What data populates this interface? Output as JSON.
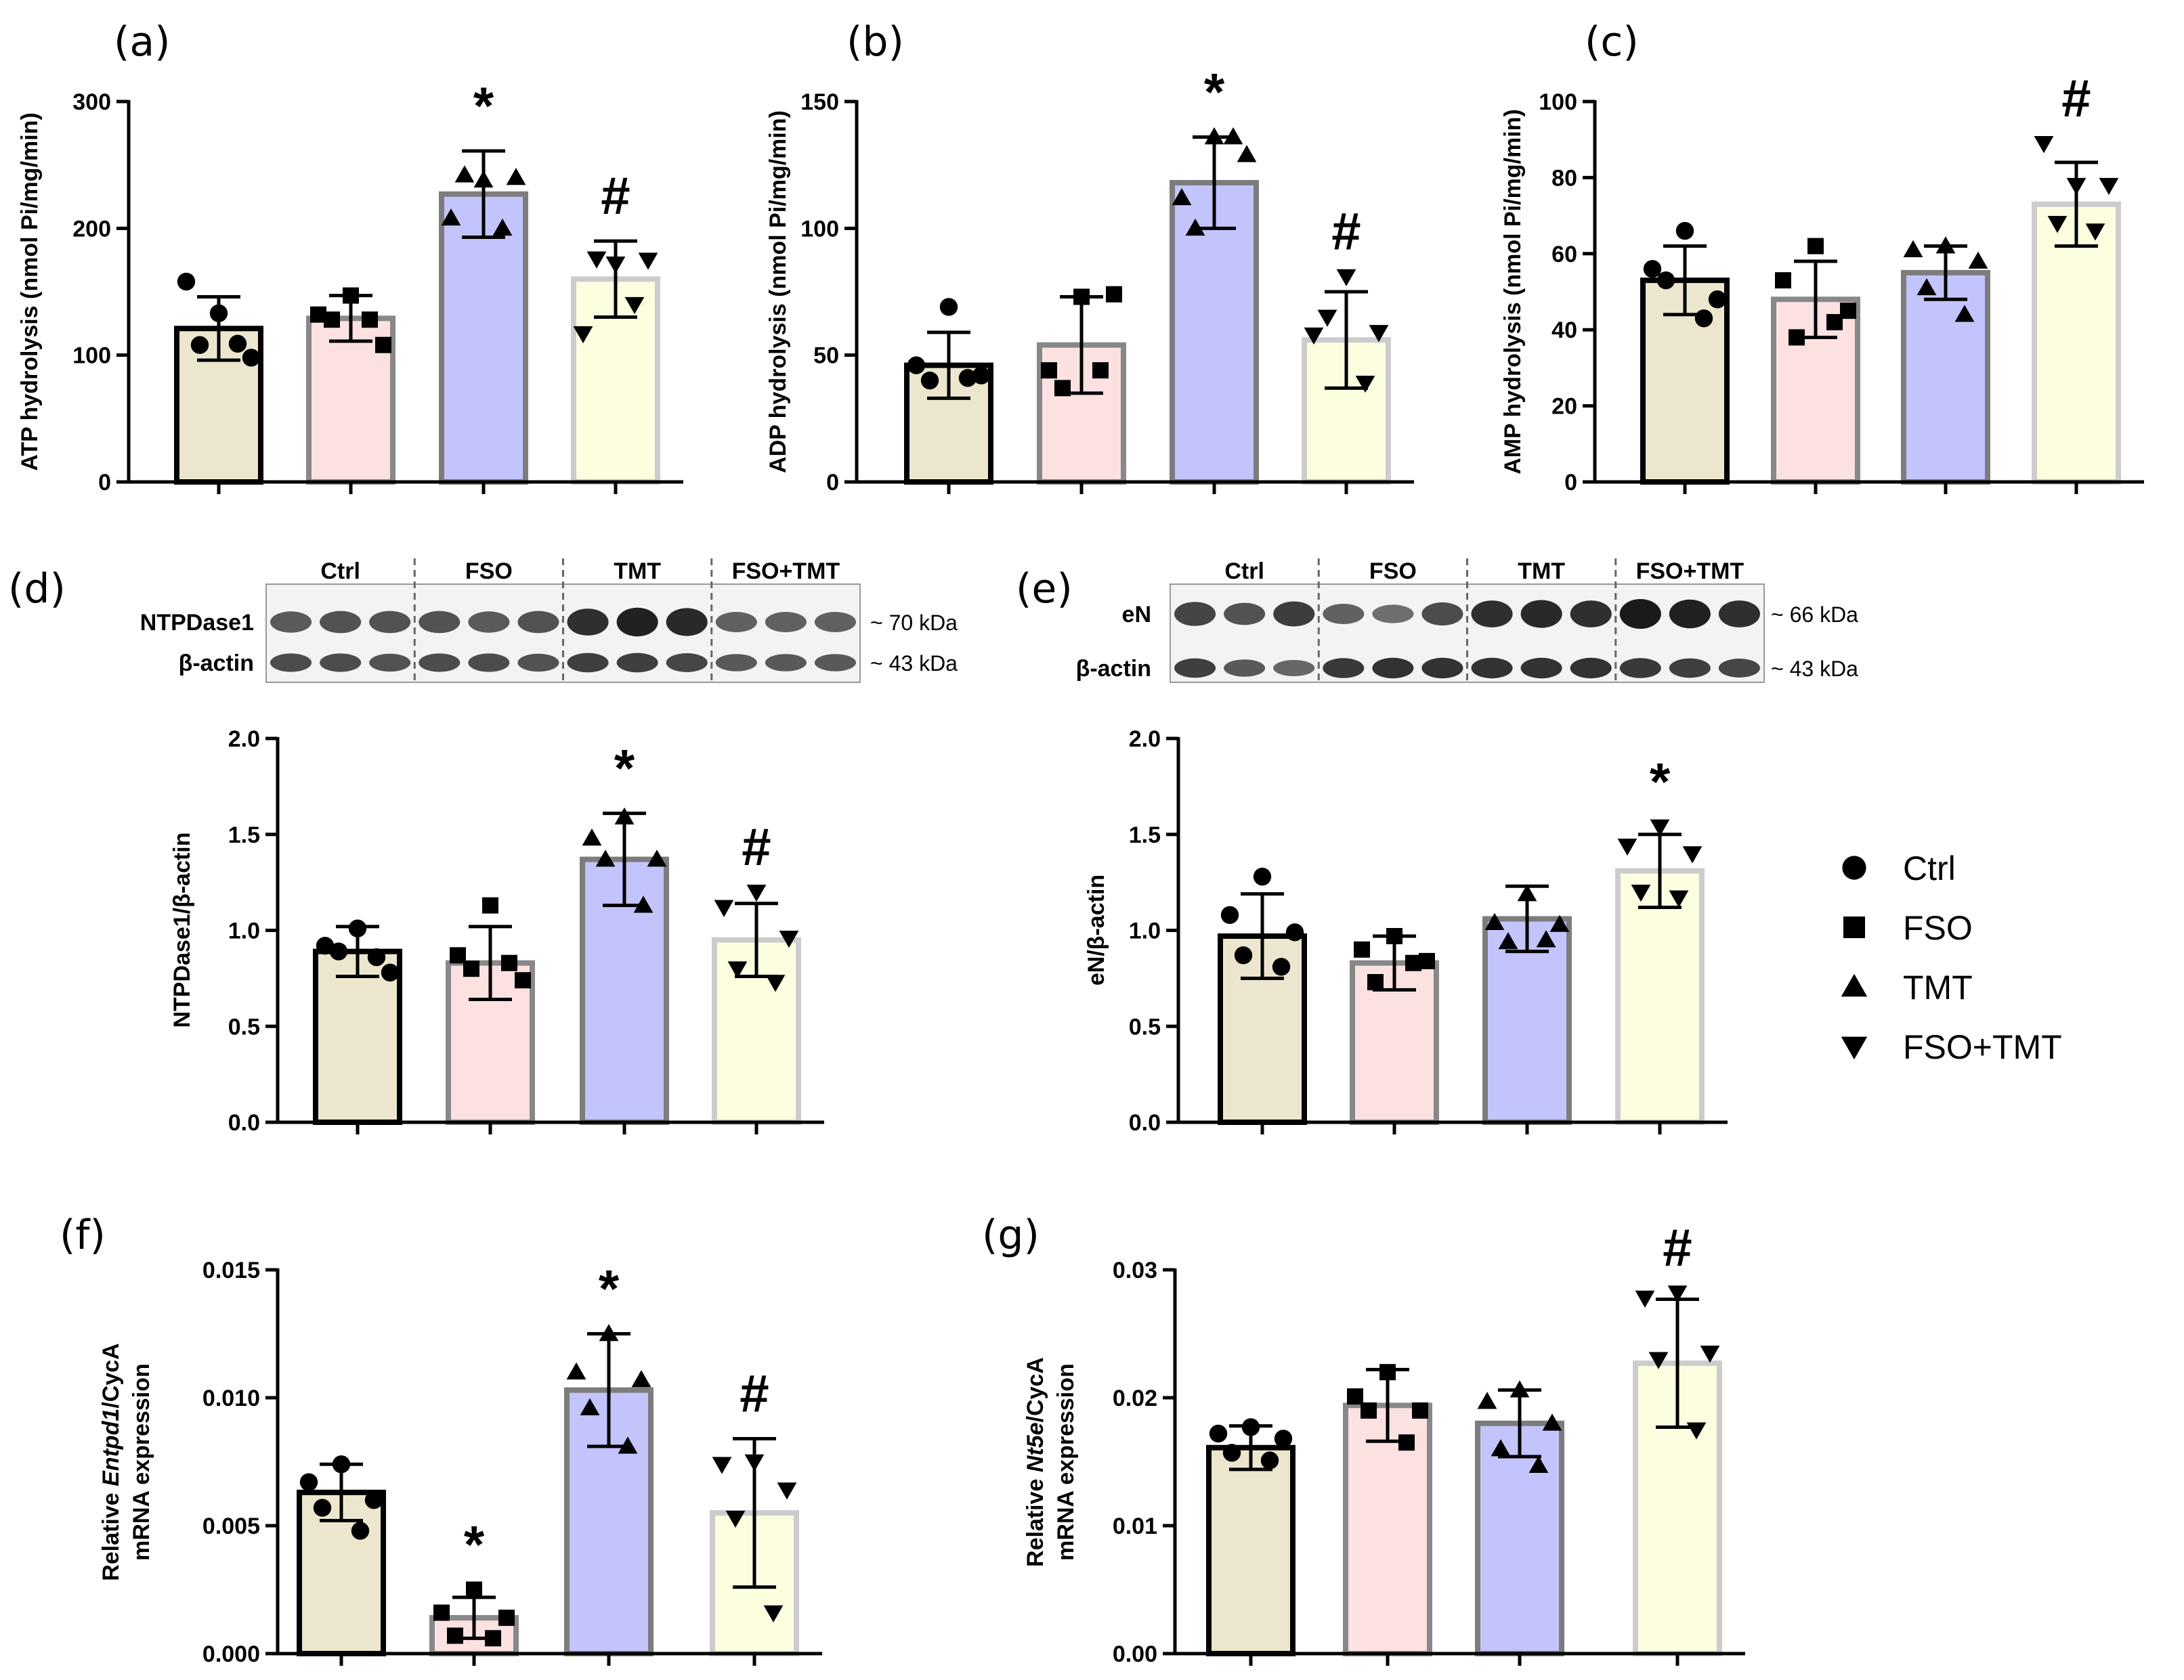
{
  "groups": [
    "Ctrl",
    "FSO",
    "TMT",
    "FSO+TMT"
  ],
  "colors": {
    "fills": [
      "#ebe6cd",
      "#fce1e1",
      "#c2c4fb",
      "#fdfde0"
    ],
    "strokes": [
      "#000000",
      "#888888",
      "#7c7c7c",
      "#cccccc"
    ],
    "blot_bg": "#f3f3f3",
    "band": "#1a1a1a"
  },
  "legend": {
    "items": [
      {
        "label": "Ctrl",
        "marker": "circle"
      },
      {
        "label": "FSO",
        "marker": "square"
      },
      {
        "label": "TMT",
        "marker": "triangle-up"
      },
      {
        "label": "FSO+TMT",
        "marker": "triangle-down"
      }
    ]
  },
  "blots": [
    {
      "panel": "(d)",
      "target_label": "NTPDase1",
      "target_kda": "~ 70 kDa",
      "loading_label": "β-actin",
      "loading_kda": "~ 43 kDa",
      "groups": [
        "Ctrl",
        "FSO",
        "TMT",
        "FSO+TMT"
      ],
      "target_intensity": [
        [
          0.55,
          0.6,
          0.6
        ],
        [
          0.6,
          0.55,
          0.6
        ],
        [
          0.85,
          0.95,
          0.9
        ],
        [
          0.5,
          0.5,
          0.5
        ]
      ],
      "loading_intensity": [
        [
          0.7,
          0.7,
          0.65
        ],
        [
          0.7,
          0.7,
          0.65
        ],
        [
          0.8,
          0.8,
          0.75
        ],
        [
          0.6,
          0.6,
          0.6
        ]
      ]
    },
    {
      "panel": "(e)",
      "target_label": "eN",
      "target_kda": "~ 66 kDa",
      "loading_label": "β-actin",
      "loading_kda": "~ 43 kDa",
      "groups": [
        "Ctrl",
        "FSO",
        "TMT",
        "FSO+TMT"
      ],
      "target_intensity": [
        [
          0.7,
          0.6,
          0.75
        ],
        [
          0.5,
          0.4,
          0.65
        ],
        [
          0.85,
          0.9,
          0.85
        ],
        [
          1.0,
          0.95,
          0.85
        ]
      ],
      "loading_intensity": [
        [
          0.8,
          0.6,
          0.5
        ],
        [
          0.85,
          0.9,
          0.9
        ],
        [
          0.9,
          0.9,
          0.9
        ],
        [
          0.85,
          0.8,
          0.75
        ]
      ]
    }
  ],
  "chart_data": [
    {
      "panel": "(a)",
      "type": "bar",
      "categories": [
        "Ctrl",
        "FSO",
        "TMT",
        "FSO+TMT"
      ],
      "ylabel": "ATP hydrolysis (nmol Pi/mg/min)",
      "ylim": [
        0,
        300
      ],
      "yticks": [
        0,
        100,
        200,
        300
      ],
      "tick_labels": [
        "0",
        "100",
        "200",
        "300"
      ],
      "values": [
        121,
        129,
        227,
        160
      ],
      "sd": [
        25,
        18,
        34,
        30
      ],
      "points": [
        [
          133,
          158,
          98,
          108,
          109
        ],
        [
          147,
          132,
          108,
          128,
          128
        ],
        [
          238,
          208,
          240,
          242,
          200
        ],
        [
          172,
          117,
          175,
          176,
          140
        ]
      ],
      "significance": [
        "",
        "",
        "*",
        "#"
      ]
    },
    {
      "panel": "(b)",
      "type": "bar",
      "categories": [
        "Ctrl",
        "FSO",
        "TMT",
        "FSO+TMT"
      ],
      "ylabel": "ADP hydrolysis (nmol Pi/mg/min)",
      "ylim": [
        0,
        150
      ],
      "yticks": [
        0,
        50,
        100,
        150
      ],
      "tick_labels": [
        "0",
        "50",
        "100",
        "150"
      ],
      "values": [
        46,
        54,
        118,
        56
      ],
      "sd": [
        13,
        19,
        18,
        19
      ],
      "points": [
        [
          69,
          46,
          42,
          40,
          41
        ],
        [
          73,
          44,
          74,
          37,
          44
        ],
        [
          136,
          112,
          129,
          100,
          136
        ],
        [
          81,
          58,
          59,
          65,
          39
        ]
      ],
      "significance": [
        "",
        "",
        "*",
        "#"
      ]
    },
    {
      "panel": "(c)",
      "type": "bar",
      "categories": [
        "Ctrl",
        "FSO",
        "TMT",
        "FSO+TMT"
      ],
      "ylabel": "AMP hydrolysis (nmol Pi/mg/min)",
      "ylim": [
        0,
        100
      ],
      "yticks": [
        0,
        20,
        40,
        60,
        80,
        100
      ],
      "tick_labels": [
        "0",
        "20",
        "40",
        "60",
        "80",
        "100"
      ],
      "values": [
        53,
        48,
        55,
        73
      ],
      "sd": [
        9,
        10,
        7,
        11
      ],
      "points": [
        [
          66,
          56,
          48,
          53,
          43
        ],
        [
          62,
          53,
          45,
          38,
          42
        ],
        [
          62,
          61,
          58,
          51,
          44
        ],
        [
          78,
          89,
          78,
          68,
          66
        ]
      ],
      "significance": [
        "",
        "",
        "",
        "#"
      ]
    },
    {
      "panel": "(d)",
      "type": "bar",
      "categories": [
        "Ctrl",
        "FSO",
        "TMT",
        "FSO+TMT"
      ],
      "ylabel": "NTPDase1/β-actin",
      "ylim": [
        0,
        2.0
      ],
      "yticks": [
        0,
        0.5,
        1.0,
        1.5,
        2.0
      ],
      "tick_labels": [
        "0.0",
        "0.5",
        "1.0",
        "1.5",
        "2.0"
      ],
      "values": [
        0.89,
        0.83,
        1.37,
        0.95
      ],
      "sd": [
        0.13,
        0.19,
        0.24,
        0.19
      ],
      "points": [
        [
          1.01,
          0.92,
          0.78,
          0.89,
          0.86
        ],
        [
          1.13,
          0.87,
          0.74,
          0.8,
          0.83
        ],
        [
          1.59,
          1.48,
          1.37,
          1.37,
          1.13
        ],
        [
          1.2,
          1.12,
          0.96,
          0.8,
          0.73
        ]
      ],
      "significance": [
        "",
        "",
        "*",
        "#"
      ]
    },
    {
      "panel": "(e)",
      "type": "bar",
      "categories": [
        "Ctrl",
        "FSO",
        "TMT",
        "FSO+TMT"
      ],
      "ylabel": "eN/β-actin",
      "ylim": [
        0,
        2.0
      ],
      "yticks": [
        0,
        0.5,
        1.0,
        1.5,
        2.0
      ],
      "tick_labels": [
        "0.0",
        "0.5",
        "1.0",
        "1.5",
        "2.0"
      ],
      "values": [
        0.97,
        0.83,
        1.06,
        1.31
      ],
      "sd": [
        0.22,
        0.14,
        0.17,
        0.19
      ],
      "points": [
        [
          1.28,
          1.08,
          0.99,
          0.87,
          0.81
        ],
        [
          0.97,
          0.9,
          0.84,
          0.73,
          0.83
        ],
        [
          1.19,
          1.04,
          1.03,
          0.94,
          0.95
        ],
        [
          1.54,
          1.44,
          1.4,
          1.2,
          1.17
        ]
      ],
      "significance": [
        "",
        "",
        "",
        "*"
      ]
    },
    {
      "panel": "(f)",
      "type": "bar",
      "categories": [
        "Ctrl",
        "FSO",
        "TMT",
        "FSO+TMT"
      ],
      "ylabel": "Relative Entpd1/CycA mRNA expression",
      "ylabel_line1_prefix": "Relative ",
      "ylabel_gene": "Entpd1",
      "ylabel_line1_suffix": "/CycA",
      "ylabel_line2": "mRNA expression",
      "ylim": [
        0,
        0.015
      ],
      "yticks": [
        0,
        0.005,
        0.01,
        0.015
      ],
      "tick_labels": [
        "0.000",
        "0.005",
        "0.010",
        "0.015"
      ],
      "values": [
        0.0063,
        0.0014,
        0.0103,
        0.0055
      ],
      "sd": [
        0.0011,
        0.0008,
        0.0022,
        0.0029
      ],
      "points": [
        [
          0.0074,
          0.0067,
          0.006,
          0.0057,
          0.0048
        ],
        [
          0.0025,
          0.0016,
          0.0014,
          0.0007,
          0.0006
        ],
        [
          0.0125,
          0.011,
          0.0107,
          0.0096,
          0.0081
        ],
        [
          0.0075,
          0.0074,
          0.0064,
          0.0053,
          0.0016
        ]
      ],
      "significance": [
        "",
        "*",
        "*",
        "#"
      ]
    },
    {
      "panel": "(g)",
      "type": "bar",
      "categories": [
        "Ctrl",
        "FSO",
        "TMT",
        "FSO+TMT"
      ],
      "ylabel": "Relative Nt5e/CycA mRNA expression",
      "ylabel_line1_prefix": "Relative ",
      "ylabel_gene": "Nt5e",
      "ylabel_line1_suffix": "/CycA",
      "ylabel_line2": "mRNA expression",
      "ylim": [
        0,
        0.03
      ],
      "yticks": [
        0,
        0.01,
        0.02,
        0.03
      ],
      "tick_labels": [
        "0.00",
        "0.01",
        "0.02",
        "0.03"
      ],
      "values": [
        0.0161,
        0.0194,
        0.018,
        0.0227
      ],
      "sd": [
        0.0017,
        0.0028,
        0.0026,
        0.005
      ],
      "points": [
        [
          0.0177,
          0.0172,
          0.0168,
          0.0157,
          0.0151
        ],
        [
          0.022,
          0.0201,
          0.019,
          0.019,
          0.0165
        ],
        [
          0.0206,
          0.0197,
          0.018,
          0.016,
          0.0147
        ],
        [
          0.0282,
          0.0278,
          0.0235,
          0.023,
          0.0175
        ]
      ],
      "significance": [
        "",
        "",
        "",
        "#"
      ]
    }
  ]
}
